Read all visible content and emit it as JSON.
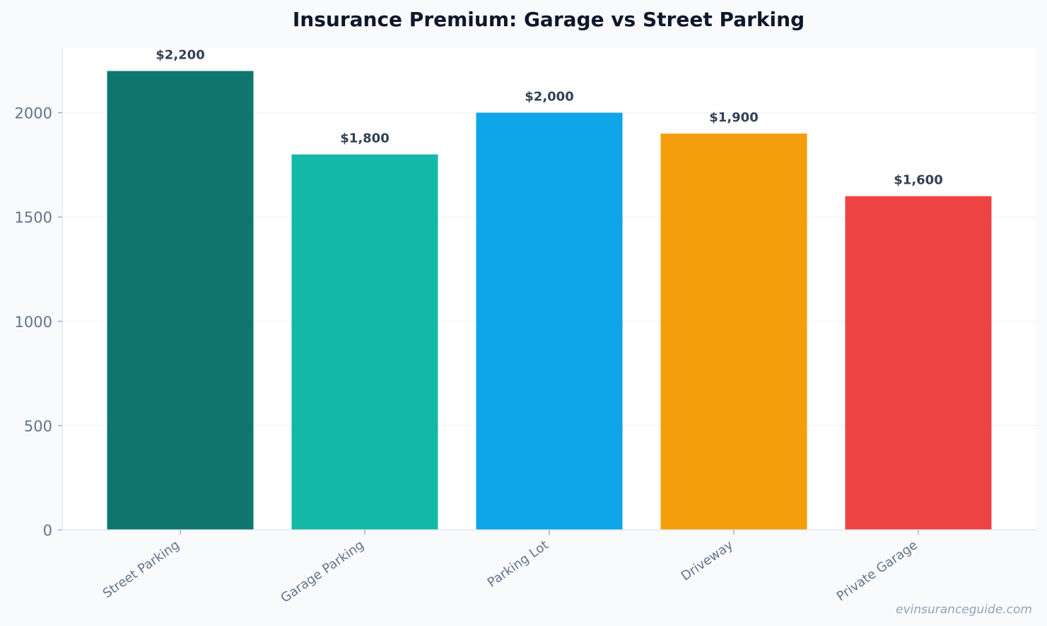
{
  "watermark": "evinsuranceguide.com",
  "chart_data": {
    "type": "bar",
    "title": "Insurance Premium: Garage vs Street Parking",
    "xlabel": "",
    "ylabel": "",
    "categories": [
      "Street Parking",
      "Garage Parking",
      "Parking Lot",
      "Driveway",
      "Private Garage"
    ],
    "values": [
      2200,
      1800,
      2000,
      1900,
      1600
    ],
    "data_labels": [
      "$2,200",
      "$1,800",
      "$2,000",
      "$1,900",
      "$1,600"
    ],
    "colors": [
      "#0f766e",
      "#14b8a6",
      "#0ea5e9",
      "#f59e0b",
      "#ef4444"
    ],
    "ylim": [
      0,
      2310
    ],
    "yticks": [
      0,
      500,
      1000,
      1500,
      2000
    ],
    "ytick_labels": [
      "0",
      "500",
      "1000",
      "1500",
      "2000"
    ],
    "grid": true,
    "legend": "none"
  }
}
